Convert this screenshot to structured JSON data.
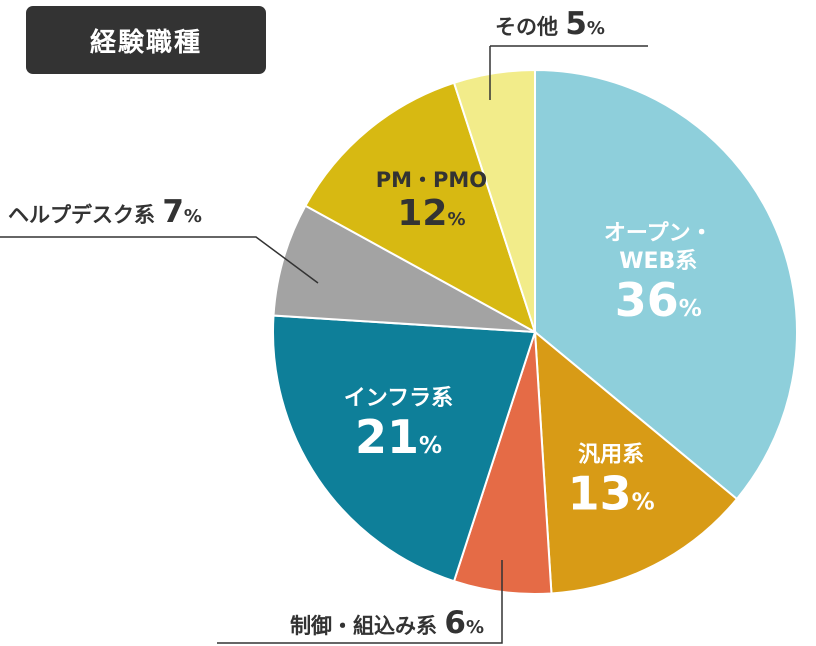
{
  "title": "経験職種",
  "chart_data": {
    "type": "pie",
    "title": "経験職種",
    "unit": "%",
    "slices": [
      {
        "name": "オープン・WEB系",
        "lines": [
          "オープン・",
          "WEB系"
        ],
        "value": 36,
        "color": "#8ecfdb",
        "text_color": "#ffffff",
        "position": "inside"
      },
      {
        "name": "汎用系",
        "lines": [
          "汎用系"
        ],
        "value": 13,
        "color": "#d89b16",
        "text_color": "#ffffff",
        "position": "inside"
      },
      {
        "name": "制御・組込み系",
        "lines": [
          "制御・組込み系"
        ],
        "value": 6,
        "color": "#e56b46",
        "text_color": "#333333",
        "position": "outside"
      },
      {
        "name": "インフラ系",
        "lines": [
          "インフラ系"
        ],
        "value": 21,
        "color": "#0e7f99",
        "text_color": "#ffffff",
        "position": "inside"
      },
      {
        "name": "ヘルプデスク系",
        "lines": [
          "ヘルプデスク系"
        ],
        "value": 7,
        "color": "#a3a3a3",
        "text_color": "#333333",
        "position": "outside"
      },
      {
        "name": "PM・PMO",
        "lines": [
          "PM・PMO"
        ],
        "value": 12,
        "color": "#d7b912",
        "text_color": "#333333",
        "position": "inside"
      },
      {
        "name": "その他",
        "lines": [
          "その他"
        ],
        "value": 5,
        "color": "#f2ec8a",
        "text_color": "#333333",
        "position": "outside"
      }
    ]
  }
}
